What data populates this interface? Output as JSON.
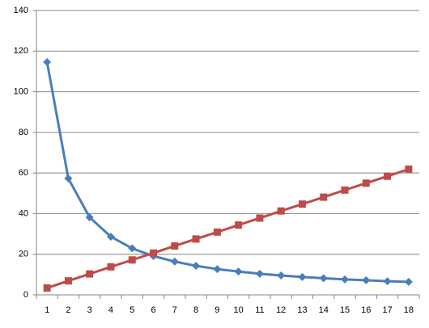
{
  "chart_data": {
    "type": "line",
    "categories": [
      1,
      2,
      3,
      4,
      5,
      6,
      7,
      8,
      9,
      10,
      11,
      12,
      13,
      14,
      15,
      16,
      17,
      18
    ],
    "series": [
      {
        "color": "#4a7ebb",
        "marker": "diamond",
        "values": [
          114.6,
          57.3,
          38.2,
          28.65,
          22.9,
          19.1,
          16.4,
          14.3,
          12.7,
          11.5,
          10.4,
          9.55,
          8.8,
          8.2,
          7.6,
          7.2,
          6.7,
          6.4
        ]
      },
      {
        "color": "#be4b48",
        "marker": "square",
        "values": [
          3.4,
          6.9,
          10.3,
          13.8,
          17.2,
          20.6,
          24.1,
          27.5,
          30.9,
          34.4,
          37.8,
          41.3,
          44.7,
          48.1,
          51.6,
          55.0,
          58.4,
          61.9
        ]
      }
    ],
    "ylim": [
      0,
      140
    ],
    "yticks": [
      0,
      20,
      40,
      60,
      80,
      100,
      120,
      140
    ],
    "grid": true
  }
}
